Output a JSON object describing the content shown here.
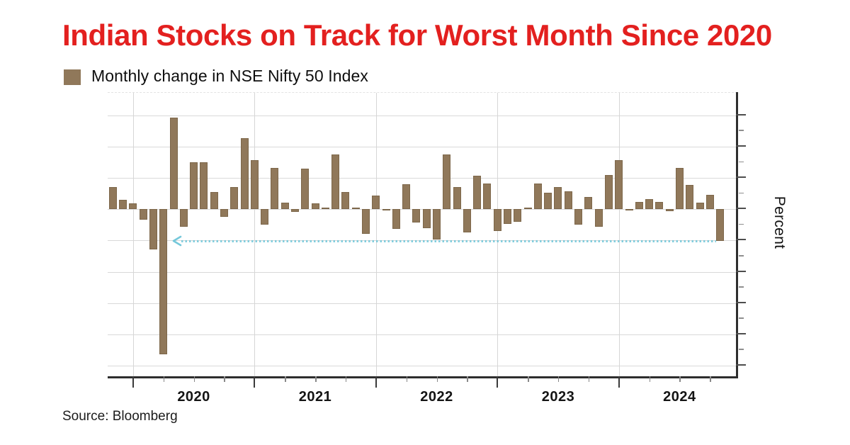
{
  "header": {
    "title": "Indian Stocks on Track for Worst Month Since 2020",
    "title_color": "#e3201f"
  },
  "legend": {
    "label": "Monthly change in NSE Nifty 50 Index",
    "swatch_color": "#90785a"
  },
  "y_axis": {
    "label": "Percent",
    "major_tick_step": 5,
    "minor_tick_step": 2.5,
    "majors": [
      15,
      10,
      5,
      0,
      -5,
      -10,
      -15,
      -20,
      -25
    ],
    "minors": [
      12.5,
      7.5,
      2.5,
      -2.5,
      -7.5,
      -12.5,
      -17.5,
      -22.5
    ]
  },
  "x_axis": {
    "year_labels": [
      "2020",
      "2021",
      "2022",
      "2023",
      "2024"
    ]
  },
  "annotation": {
    "type": "dashed-reference-line-with-left-arrow",
    "value": -5.1,
    "color": "#66c2d6"
  },
  "source": {
    "label": "Source: Bloomberg"
  },
  "chart_data": {
    "type": "bar",
    "title": "Monthly change in NSE Nifty 50 Index",
    "xlabel": "",
    "ylabel": "Percent",
    "ylim": [
      -26.9,
      18.6
    ],
    "grid": "horizontal-major-5pct, vertical-year-lines",
    "legend_position": "top-left",
    "bar_color": "#90785a",
    "reference_line_value": -5.1,
    "x": [
      "Oct 2019",
      "Nov 2019",
      "Dec 2019",
      "Jan 2020",
      "Feb 2020",
      "Mar 2020",
      "Apr 2020",
      "May 2020",
      "Jun 2020",
      "Jul 2020",
      "Aug 2020",
      "Sep 2020",
      "Oct 2020",
      "Nov 2020",
      "Dec 2020",
      "Jan 2021",
      "Feb 2021",
      "Mar 2021",
      "Apr 2021",
      "May 2021",
      "Jun 2021",
      "Jul 2021",
      "Aug 2021",
      "Sep 2021",
      "Oct 2021",
      "Nov 2021",
      "Dec 2021",
      "Jan 2022",
      "Feb 2022",
      "Mar 2022",
      "Apr 2022",
      "May 2022",
      "Jun 2022",
      "Jul 2022",
      "Aug 2022",
      "Sep 2022",
      "Oct 2022",
      "Nov 2022",
      "Dec 2022",
      "Jan 2023",
      "Feb 2023",
      "Mar 2023",
      "Apr 2023",
      "May 2023",
      "Jun 2023",
      "Jul 2023",
      "Aug 2023",
      "Sep 2023",
      "Oct 2023",
      "Nov 2023",
      "Dec 2023",
      "Jan 2024",
      "Feb 2024",
      "Mar 2024",
      "Apr 2024",
      "May 2024",
      "Jun 2024",
      "Jul 2024",
      "Aug 2024",
      "Sep 2024",
      "Oct 2024"
    ],
    "values": [
      3.5,
      1.5,
      0.9,
      -1.7,
      -6.4,
      -23.2,
      14.7,
      -2.8,
      7.5,
      7.5,
      2.8,
      -1.2,
      3.5,
      11.4,
      7.8,
      -2.5,
      6.6,
      1.1,
      -0.4,
      6.5,
      0.9,
      0.3,
      8.7,
      2.8,
      0.3,
      -3.9,
      2.2,
      -0.2,
      -3.1,
      4.0,
      -2.1,
      -3.0,
      -4.8,
      8.7,
      3.5,
      -3.7,
      5.4,
      4.1,
      -3.5,
      -2.4,
      -2.0,
      0.3,
      4.1,
      2.6,
      3.5,
      2.9,
      -2.5,
      2.0,
      -2.8,
      5.5,
      7.9,
      0.0,
      1.2,
      1.6,
      1.2,
      -0.3,
      6.6,
      3.9,
      1.1,
      2.3,
      -5.1
    ]
  }
}
